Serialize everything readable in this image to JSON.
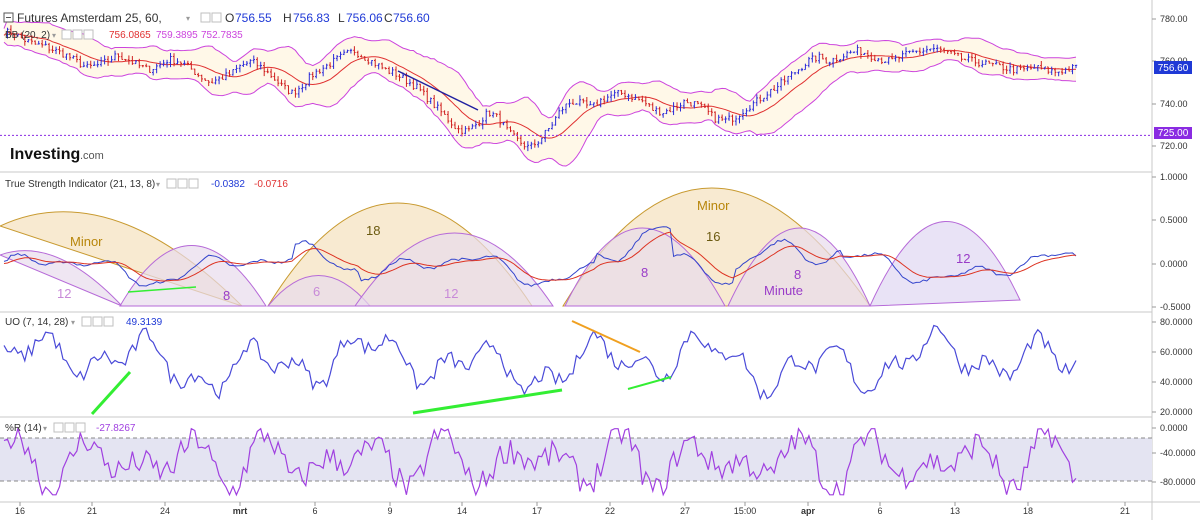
{
  "chart_data": [
    {
      "type": "line",
      "panel": "price",
      "title": "Futures Amsterdam 25, 60,",
      "ohlc": {
        "open_label": "O",
        "open": "756.55",
        "high_label": "H",
        "high": "756.83",
        "low_label": "L",
        "low": "756.06",
        "close_label": "C",
        "close": "756.60"
      },
      "indicator_label": "BB (20, 2)",
      "indicator_values": [
        "756.0865",
        "759.3895",
        "752.7835"
      ],
      "y_ticks": [
        "780.00",
        "760.00",
        "740.00",
        "720.00"
      ],
      "ylim": [
        715,
        785
      ],
      "price_tag": "756.60",
      "level_tag": "725.00",
      "level": 725,
      "close_series": [
        774,
        773,
        770,
        768,
        767,
        765,
        763,
        760,
        757,
        758,
        760,
        763,
        761,
        758,
        756,
        758,
        761,
        760,
        757,
        753,
        750,
        752,
        754,
        758,
        760,
        757,
        753,
        748,
        745,
        749,
        754,
        757,
        760,
        763,
        765,
        762,
        759,
        756,
        754,
        751,
        748,
        743,
        738,
        733,
        728,
        727,
        731,
        736,
        733,
        726,
        722,
        719,
        723,
        729,
        737,
        741,
        740,
        738,
        742,
        744,
        745,
        743,
        741,
        737,
        736,
        738,
        741,
        740,
        737,
        733,
        732,
        734,
        738,
        741,
        745,
        748,
        752,
        756,
        760,
        762,
        760,
        762,
        764,
        765,
        763,
        761,
        760,
        762,
        764,
        765,
        766,
        765,
        763,
        761,
        760,
        759,
        758,
        757,
        756,
        756,
        757,
        756,
        755,
        756,
        757
      ]
    },
    {
      "type": "line",
      "panel": "tsi",
      "title": "True Strength Indicator (21, 13, 8)",
      "values": [
        "-0.0382",
        "-0.0716"
      ],
      "y_ticks": [
        "1.0000",
        "0.5000",
        "0.0000",
        "-0.5000"
      ],
      "ylim": [
        -0.55,
        1.1
      ],
      "annotations": [
        "Minor",
        "18",
        "16",
        "Minor",
        "12",
        "8",
        "6",
        "12",
        "8",
        "8",
        "Minute",
        "12"
      ]
    },
    {
      "type": "line",
      "panel": "uo",
      "title": "UO (7, 14, 28)",
      "value": "49.3139",
      "y_ticks": [
        "80.0000",
        "60.0000",
        "40.0000",
        "20.0000"
      ],
      "ylim": [
        18,
        86
      ]
    },
    {
      "type": "line",
      "panel": "williams_r",
      "title": "%R (14)",
      "value": "-27.8267",
      "y_ticks": [
        "0.0000",
        "-40.0000",
        "-80.0000"
      ],
      "ylim": [
        -100,
        5
      ],
      "band": [
        -20,
        -80
      ]
    }
  ],
  "x_axis_labels": [
    "16",
    "21",
    "24",
    "mrt",
    "6",
    "9",
    "14",
    "17",
    "22",
    "27",
    "15:00",
    "apr",
    "6",
    "13",
    "18",
    "21"
  ],
  "brand": {
    "name": "Investing",
    "suffix": ".com"
  },
  "colors": {
    "price_bar": "#2b2bd8",
    "bb_band": "#cc44dd",
    "bb_mid": "#e03030",
    "bb_fill": "#fff8e8",
    "tsi_line": "#3344cc",
    "tsi_signal": "#dd3322",
    "uo_line": "#4a4ad8",
    "wr_line": "#a040e0",
    "wr_band_fill": "#e4e4f2",
    "trend_green": "#33ee33",
    "trend_orange": "#f0a020",
    "trend_navy": "#2020a0",
    "level_tag": "#8a2be2",
    "price_tag": "#1f39d6",
    "minor_fill": "#f3dcb3",
    "minor_stroke": "#c89a30",
    "mid_fill": "#e8dcec",
    "mid_stroke": "#b66ad8"
  },
  "icons": [
    "collapse-icon",
    "gear-icon",
    "close-icon",
    "chevron-down-icon"
  ]
}
